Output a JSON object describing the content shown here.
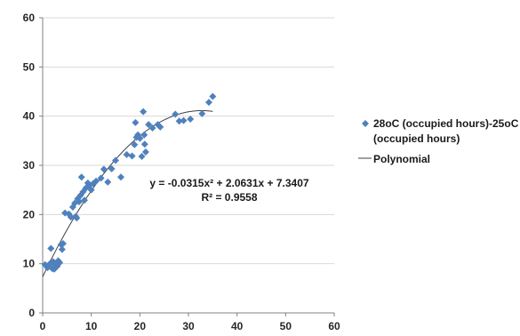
{
  "chart_data": {
    "type": "scatter",
    "title": "",
    "xlabel": "",
    "ylabel": "",
    "xlim": [
      0,
      60
    ],
    "ylim": [
      0,
      60
    ],
    "x_ticks": [
      "0",
      "10",
      "20",
      "30",
      "40",
      "50",
      "60"
    ],
    "y_ticks": [
      "0",
      "10",
      "20",
      "30",
      "40",
      "50",
      "60"
    ],
    "grid": "horizontal",
    "legend_position": "right",
    "series": [
      {
        "name": "28oC (occupied hours)-25oC (occupied hours)",
        "name_lines": [
          "28oC (occupied hours)-25oC",
          "(occupied hours)"
        ],
        "marker": "diamond",
        "color": "#4F81BD",
        "points": [
          [
            0.5,
            9.8
          ],
          [
            1.0,
            9.2
          ],
          [
            1.2,
            9.6
          ],
          [
            1.5,
            10.0
          ],
          [
            1.7,
            13.1
          ],
          [
            2.0,
            9.0
          ],
          [
            2.2,
            10.4
          ],
          [
            2.4,
            8.9
          ],
          [
            2.6,
            9.8
          ],
          [
            2.8,
            10.1
          ],
          [
            3.0,
            9.5
          ],
          [
            3.2,
            10.6
          ],
          [
            3.5,
            10.2
          ],
          [
            3.8,
            13.9
          ],
          [
            4.0,
            12.9
          ],
          [
            4.2,
            14.1
          ],
          [
            4.6,
            20.3
          ],
          [
            5.4,
            20.1
          ],
          [
            5.8,
            19.5
          ],
          [
            6.2,
            21.5
          ],
          [
            6.6,
            22.3
          ],
          [
            6.8,
            19.6
          ],
          [
            7.0,
            19.3
          ],
          [
            7.2,
            23.2
          ],
          [
            7.5,
            22.6
          ],
          [
            7.8,
            23.9
          ],
          [
            8.0,
            27.6
          ],
          [
            8.3,
            24.6
          ],
          [
            8.6,
            22.9
          ],
          [
            8.9,
            25.4
          ],
          [
            9.3,
            26.4
          ],
          [
            9.6,
            25.9
          ],
          [
            10.0,
            25.0
          ],
          [
            10.4,
            26.3
          ],
          [
            11.0,
            26.8
          ],
          [
            12.0,
            27.4
          ],
          [
            12.6,
            29.2
          ],
          [
            13.4,
            26.6
          ],
          [
            14.2,
            29.3
          ],
          [
            15.0,
            31.0
          ],
          [
            16.1,
            27.6
          ],
          [
            17.3,
            32.2
          ],
          [
            18.4,
            31.9
          ],
          [
            18.9,
            34.2
          ],
          [
            19.1,
            38.7
          ],
          [
            19.3,
            35.7
          ],
          [
            19.6,
            36.2
          ],
          [
            20.0,
            35.5
          ],
          [
            20.4,
            31.8
          ],
          [
            20.7,
            40.9
          ],
          [
            20.9,
            36.2
          ],
          [
            21.0,
            34.3
          ],
          [
            21.2,
            32.7
          ],
          [
            21.8,
            38.3
          ],
          [
            22.6,
            37.6
          ],
          [
            23.7,
            38.3
          ],
          [
            24.2,
            37.8
          ],
          [
            27.3,
            40.4
          ],
          [
            28.1,
            39.0
          ],
          [
            29.0,
            39.1
          ],
          [
            30.4,
            39.4
          ],
          [
            32.8,
            40.5
          ],
          [
            34.2,
            42.8
          ],
          [
            35.0,
            44.0
          ]
        ]
      },
      {
        "name": "Polynomial",
        "type": "trendline",
        "color": "#404040",
        "coefficients": {
          "a": -0.0315,
          "b": 2.0631,
          "c": 7.3407
        },
        "x_range": [
          0,
          35
        ]
      }
    ],
    "annotations": {
      "equation": "y = -0.0315x² + 2.0631x + 7.3407",
      "r_squared": "R² = 0.9558"
    }
  }
}
